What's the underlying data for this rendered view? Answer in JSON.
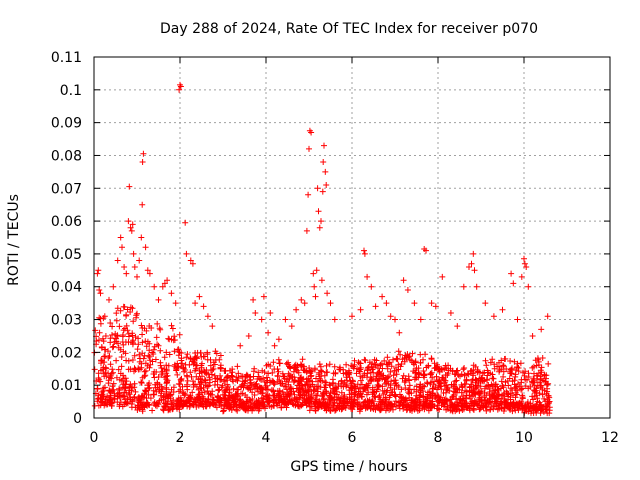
{
  "chart_data": {
    "type": "scatter",
    "title": "Day 288 of 2024, Rate Of TEC Index for receiver p070",
    "xlabel": "GPS time / hours",
    "ylabel": "ROTI / TECUs",
    "xlim": [
      0,
      12
    ],
    "ylim": [
      0,
      0.11
    ],
    "xticks": [
      0,
      2,
      4,
      6,
      8,
      10,
      12
    ],
    "xtick_labels": [
      "0",
      "2",
      "4",
      "6",
      "8",
      "10",
      "12"
    ],
    "yticks": [
      0,
      0.01,
      0.02,
      0.03,
      0.04,
      0.05,
      0.06,
      0.07,
      0.08,
      0.09,
      0.1,
      0.11
    ],
    "ytick_labels": [
      "0",
      "0.01",
      "0.02",
      "0.03",
      "0.04",
      "0.05",
      "0.06",
      "0.07",
      "0.08",
      "0.09",
      "0.1",
      "0.11"
    ],
    "grid": true,
    "marker": "+",
    "marker_color": "#ff0000",
    "data_range_hours": [
      0,
      10.6
    ],
    "dense_band": {
      "segments": [
        {
          "x_from": 0.0,
          "x_to": 0.5,
          "y_low": 0.004,
          "y_high": 0.03
        },
        {
          "x_from": 0.5,
          "x_to": 1.0,
          "y_low": 0.004,
          "y_high": 0.035
        },
        {
          "x_from": 1.0,
          "x_to": 2.0,
          "y_low": 0.003,
          "y_high": 0.028
        },
        {
          "x_from": 2.0,
          "x_to": 3.0,
          "y_low": 0.004,
          "y_high": 0.02
        },
        {
          "x_from": 3.0,
          "x_to": 4.0,
          "y_low": 0.003,
          "y_high": 0.015
        },
        {
          "x_from": 4.0,
          "x_to": 5.0,
          "y_low": 0.004,
          "y_high": 0.017
        },
        {
          "x_from": 5.0,
          "x_to": 6.0,
          "y_low": 0.003,
          "y_high": 0.016
        },
        {
          "x_from": 6.0,
          "x_to": 7.0,
          "y_low": 0.003,
          "y_high": 0.018
        },
        {
          "x_from": 7.0,
          "x_to": 8.0,
          "y_low": 0.003,
          "y_high": 0.02
        },
        {
          "x_from": 8.0,
          "x_to": 9.0,
          "y_low": 0.003,
          "y_high": 0.016
        },
        {
          "x_from": 9.0,
          "x_to": 10.0,
          "y_low": 0.003,
          "y_high": 0.018
        },
        {
          "x_from": 10.0,
          "x_to": 10.6,
          "y_low": 0.002,
          "y_high": 0.018
        }
      ],
      "point_count": 2600
    },
    "outliers": [
      {
        "x": 0.08,
        "y": 0.044
      },
      {
        "x": 0.1,
        "y": 0.045
      },
      {
        "x": 0.12,
        "y": 0.039
      },
      {
        "x": 0.15,
        "y": 0.038
      },
      {
        "x": 0.25,
        "y": 0.031
      },
      {
        "x": 0.35,
        "y": 0.036
      },
      {
        "x": 0.45,
        "y": 0.04
      },
      {
        "x": 0.55,
        "y": 0.048
      },
      {
        "x": 0.62,
        "y": 0.055
      },
      {
        "x": 0.65,
        "y": 0.052
      },
      {
        "x": 0.7,
        "y": 0.046
      },
      {
        "x": 0.75,
        "y": 0.044
      },
      {
        "x": 0.8,
        "y": 0.06
      },
      {
        "x": 0.82,
        "y": 0.0705
      },
      {
        "x": 0.85,
        "y": 0.058
      },
      {
        "x": 0.88,
        "y": 0.057
      },
      {
        "x": 0.9,
        "y": 0.059
      },
      {
        "x": 0.92,
        "y": 0.05
      },
      {
        "x": 0.95,
        "y": 0.046
      },
      {
        "x": 1.0,
        "y": 0.043
      },
      {
        "x": 1.05,
        "y": 0.048
      },
      {
        "x": 1.1,
        "y": 0.055
      },
      {
        "x": 1.12,
        "y": 0.065
      },
      {
        "x": 1.13,
        "y": 0.078
      },
      {
        "x": 1.15,
        "y": 0.0805
      },
      {
        "x": 1.2,
        "y": 0.052
      },
      {
        "x": 1.25,
        "y": 0.045
      },
      {
        "x": 1.3,
        "y": 0.044
      },
      {
        "x": 1.4,
        "y": 0.04
      },
      {
        "x": 1.5,
        "y": 0.036
      },
      {
        "x": 1.6,
        "y": 0.04
      },
      {
        "x": 1.65,
        "y": 0.041
      },
      {
        "x": 1.7,
        "y": 0.042
      },
      {
        "x": 1.8,
        "y": 0.038
      },
      {
        "x": 1.9,
        "y": 0.035
      },
      {
        "x": 1.98,
        "y": 0.1
      },
      {
        "x": 2.0,
        "y": 0.1015
      },
      {
        "x": 2.02,
        "y": 0.101
      },
      {
        "x": 2.12,
        "y": 0.0595
      },
      {
        "x": 2.15,
        "y": 0.05
      },
      {
        "x": 2.25,
        "y": 0.048
      },
      {
        "x": 2.3,
        "y": 0.047
      },
      {
        "x": 2.35,
        "y": 0.035
      },
      {
        "x": 2.45,
        "y": 0.037
      },
      {
        "x": 2.55,
        "y": 0.034
      },
      {
        "x": 2.65,
        "y": 0.031
      },
      {
        "x": 2.75,
        "y": 0.028
      },
      {
        "x": 3.0,
        "y": 0.002
      },
      {
        "x": 3.4,
        "y": 0.022
      },
      {
        "x": 3.6,
        "y": 0.025
      },
      {
        "x": 3.7,
        "y": 0.036
      },
      {
        "x": 3.75,
        "y": 0.032
      },
      {
        "x": 3.9,
        "y": 0.03
      },
      {
        "x": 3.95,
        "y": 0.037
      },
      {
        "x": 4.05,
        "y": 0.026
      },
      {
        "x": 4.1,
        "y": 0.032
      },
      {
        "x": 4.2,
        "y": 0.022
      },
      {
        "x": 4.3,
        "y": 0.024
      },
      {
        "x": 4.45,
        "y": 0.03
      },
      {
        "x": 4.6,
        "y": 0.028
      },
      {
        "x": 4.7,
        "y": 0.033
      },
      {
        "x": 4.82,
        "y": 0.036
      },
      {
        "x": 4.9,
        "y": 0.035
      },
      {
        "x": 4.95,
        "y": 0.057
      },
      {
        "x": 4.98,
        "y": 0.068
      },
      {
        "x": 5.0,
        "y": 0.082
      },
      {
        "x": 5.02,
        "y": 0.0875
      },
      {
        "x": 5.05,
        "y": 0.087
      },
      {
        "x": 5.1,
        "y": 0.044
      },
      {
        "x": 5.12,
        "y": 0.04
      },
      {
        "x": 5.15,
        "y": 0.037
      },
      {
        "x": 5.18,
        "y": 0.045
      },
      {
        "x": 5.2,
        "y": 0.07
      },
      {
        "x": 5.22,
        "y": 0.063
      },
      {
        "x": 5.25,
        "y": 0.058
      },
      {
        "x": 5.28,
        "y": 0.06
      },
      {
        "x": 5.3,
        "y": 0.042
      },
      {
        "x": 5.32,
        "y": 0.069
      },
      {
        "x": 5.33,
        "y": 0.078
      },
      {
        "x": 5.35,
        "y": 0.083
      },
      {
        "x": 5.38,
        "y": 0.075
      },
      {
        "x": 5.4,
        "y": 0.071
      },
      {
        "x": 5.42,
        "y": 0.038
      },
      {
        "x": 5.5,
        "y": 0.035
      },
      {
        "x": 5.6,
        "y": 0.03
      },
      {
        "x": 6.0,
        "y": 0.031
      },
      {
        "x": 6.2,
        "y": 0.033
      },
      {
        "x": 6.28,
        "y": 0.051
      },
      {
        "x": 6.3,
        "y": 0.05
      },
      {
        "x": 6.35,
        "y": 0.043
      },
      {
        "x": 6.45,
        "y": 0.04
      },
      {
        "x": 6.55,
        "y": 0.034
      },
      {
        "x": 6.7,
        "y": 0.037
      },
      {
        "x": 6.8,
        "y": 0.035
      },
      {
        "x": 6.9,
        "y": 0.031
      },
      {
        "x": 7.0,
        "y": 0.03
      },
      {
        "x": 7.1,
        "y": 0.026
      },
      {
        "x": 7.2,
        "y": 0.042
      },
      {
        "x": 7.3,
        "y": 0.039
      },
      {
        "x": 7.45,
        "y": 0.035
      },
      {
        "x": 7.6,
        "y": 0.03
      },
      {
        "x": 7.68,
        "y": 0.0515
      },
      {
        "x": 7.72,
        "y": 0.051
      },
      {
        "x": 7.85,
        "y": 0.035
      },
      {
        "x": 7.95,
        "y": 0.034
      },
      {
        "x": 8.1,
        "y": 0.043
      },
      {
        "x": 8.3,
        "y": 0.032
      },
      {
        "x": 8.45,
        "y": 0.028
      },
      {
        "x": 8.6,
        "y": 0.04
      },
      {
        "x": 8.72,
        "y": 0.046
      },
      {
        "x": 8.78,
        "y": 0.047
      },
      {
        "x": 8.82,
        "y": 0.05
      },
      {
        "x": 8.85,
        "y": 0.045
      },
      {
        "x": 8.9,
        "y": 0.04
      },
      {
        "x": 9.1,
        "y": 0.035
      },
      {
        "x": 9.3,
        "y": 0.031
      },
      {
        "x": 9.5,
        "y": 0.033
      },
      {
        "x": 9.7,
        "y": 0.044
      },
      {
        "x": 9.75,
        "y": 0.041
      },
      {
        "x": 9.85,
        "y": 0.03
      },
      {
        "x": 9.95,
        "y": 0.043
      },
      {
        "x": 10.0,
        "y": 0.0485
      },
      {
        "x": 10.02,
        "y": 0.047
      },
      {
        "x": 10.05,
        "y": 0.046
      },
      {
        "x": 10.1,
        "y": 0.04
      },
      {
        "x": 10.2,
        "y": 0.025
      },
      {
        "x": 10.4,
        "y": 0.027
      },
      {
        "x": 10.55,
        "y": 0.031
      }
    ]
  }
}
